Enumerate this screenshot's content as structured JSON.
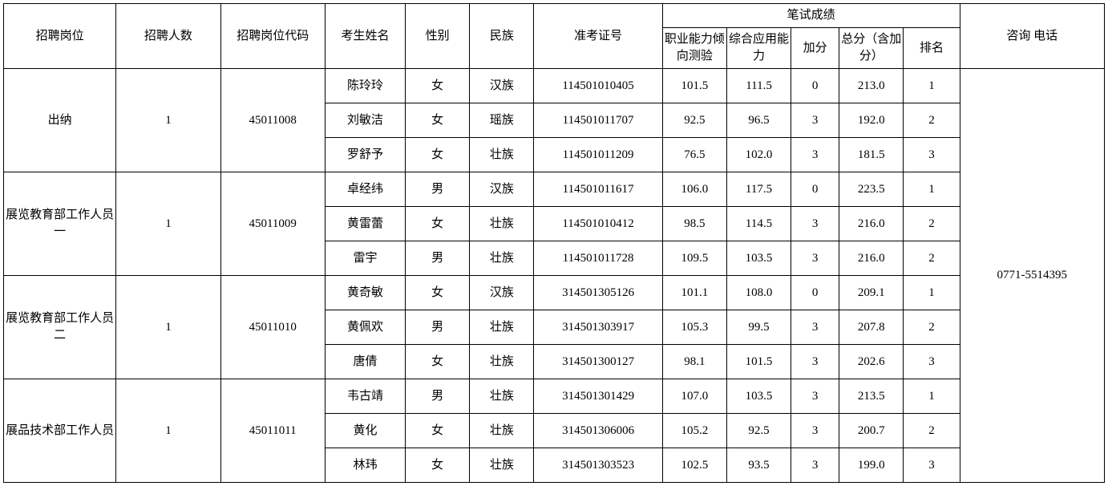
{
  "header": {
    "position": "招聘岗位",
    "count": "招聘人数",
    "code": "招聘岗位代码",
    "name": "考生姓名",
    "sex": "性别",
    "ethnic": "民族",
    "examNo": "准考证号",
    "writtenGroup": "笔试成绩",
    "sc1": "职业能力倾向测验",
    "sc2": "综合应用能力",
    "bonus": "加分",
    "total": "总分（含加分）",
    "rank": "排名",
    "tel": "咨询\n电话"
  },
  "telValue": "0771-5514395",
  "groups": [
    {
      "position": "出纳",
      "count": "1",
      "code": "45011008",
      "rows": [
        {
          "name": "陈玲玲",
          "sex": "女",
          "eth": "汉族",
          "examNo": "114501010405",
          "sc1": "101.5",
          "sc2": "111.5",
          "bonus": "0",
          "total": "213.0",
          "rank": "1"
        },
        {
          "name": "刘敏洁",
          "sex": "女",
          "eth": "瑶族",
          "examNo": "114501011707",
          "sc1": "92.5",
          "sc2": "96.5",
          "bonus": "3",
          "total": "192.0",
          "rank": "2"
        },
        {
          "name": "罗舒予",
          "sex": "女",
          "eth": "壮族",
          "examNo": "114501011209",
          "sc1": "76.5",
          "sc2": "102.0",
          "bonus": "3",
          "total": "181.5",
          "rank": "3"
        }
      ]
    },
    {
      "position": "展览教育部工作人员一",
      "count": "1",
      "code": "45011009",
      "rows": [
        {
          "name": "卓经纬",
          "sex": "男",
          "eth": "汉族",
          "examNo": "114501011617",
          "sc1": "106.0",
          "sc2": "117.5",
          "bonus": "0",
          "total": "223.5",
          "rank": "1"
        },
        {
          "name": "黄雷蕾",
          "sex": "女",
          "eth": "壮族",
          "examNo": "114501010412",
          "sc1": "98.5",
          "sc2": "114.5",
          "bonus": "3",
          "total": "216.0",
          "rank": "2"
        },
        {
          "name": "雷宇",
          "sex": "男",
          "eth": "壮族",
          "examNo": "114501011728",
          "sc1": "109.5",
          "sc2": "103.5",
          "bonus": "3",
          "total": "216.0",
          "rank": "2"
        }
      ]
    },
    {
      "position": "展览教育部工作人员二",
      "count": "1",
      "code": "45011010",
      "rows": [
        {
          "name": "黄奇敏",
          "sex": "女",
          "eth": "汉族",
          "examNo": "314501305126",
          "sc1": "101.1",
          "sc2": "108.0",
          "bonus": "0",
          "total": "209.1",
          "rank": "1"
        },
        {
          "name": "黄佩欢",
          "sex": "男",
          "eth": "壮族",
          "examNo": "314501303917",
          "sc1": "105.3",
          "sc2": "99.5",
          "bonus": "3",
          "total": "207.8",
          "rank": "2"
        },
        {
          "name": "唐倩",
          "sex": "女",
          "eth": "壮族",
          "examNo": "314501300127",
          "sc1": "98.1",
          "sc2": "101.5",
          "bonus": "3",
          "total": "202.6",
          "rank": "3"
        }
      ]
    },
    {
      "position": "展品技术部工作人员",
      "count": "1",
      "code": "45011011",
      "rows": [
        {
          "name": "韦古靖",
          "sex": "男",
          "eth": "壮族",
          "examNo": "314501301429",
          "sc1": "107.0",
          "sc2": "103.5",
          "bonus": "3",
          "total": "213.5",
          "rank": "1"
        },
        {
          "name": "黄化",
          "sex": "女",
          "eth": "壮族",
          "examNo": "314501306006",
          "sc1": "105.2",
          "sc2": "92.5",
          "bonus": "3",
          "total": "200.7",
          "rank": "2"
        },
        {
          "name": "林玮",
          "sex": "女",
          "eth": "壮族",
          "examNo": "314501303523",
          "sc1": "102.5",
          "sc2": "93.5",
          "bonus": "3",
          "total": "199.0",
          "rank": "3"
        }
      ]
    }
  ]
}
